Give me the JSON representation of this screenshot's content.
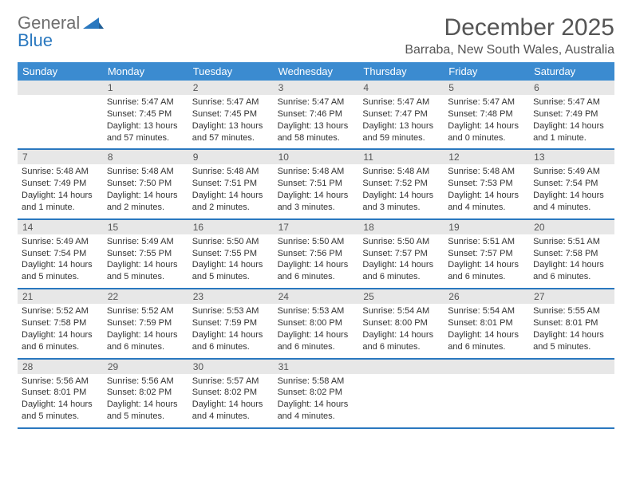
{
  "brand": {
    "part1": "General",
    "part2": "Blue"
  },
  "title": "December 2025",
  "location": "Barraba, New South Wales, Australia",
  "colors": {
    "header_bg": "#3b8bd0",
    "week_divider": "#2a78bf",
    "daynum_bg": "#e7e7e7",
    "text": "#333333",
    "muted": "#555555",
    "white": "#ffffff"
  },
  "days_of_week": [
    "Sunday",
    "Monday",
    "Tuesday",
    "Wednesday",
    "Thursday",
    "Friday",
    "Saturday"
  ],
  "weeks": [
    [
      null,
      {
        "n": "1",
        "sr": "Sunrise: 5:47 AM",
        "ss": "Sunset: 7:45 PM",
        "dl": "Daylight: 13 hours and 57 minutes."
      },
      {
        "n": "2",
        "sr": "Sunrise: 5:47 AM",
        "ss": "Sunset: 7:45 PM",
        "dl": "Daylight: 13 hours and 57 minutes."
      },
      {
        "n": "3",
        "sr": "Sunrise: 5:47 AM",
        "ss": "Sunset: 7:46 PM",
        "dl": "Daylight: 13 hours and 58 minutes."
      },
      {
        "n": "4",
        "sr": "Sunrise: 5:47 AM",
        "ss": "Sunset: 7:47 PM",
        "dl": "Daylight: 13 hours and 59 minutes."
      },
      {
        "n": "5",
        "sr": "Sunrise: 5:47 AM",
        "ss": "Sunset: 7:48 PM",
        "dl": "Daylight: 14 hours and 0 minutes."
      },
      {
        "n": "6",
        "sr": "Sunrise: 5:47 AM",
        "ss": "Sunset: 7:49 PM",
        "dl": "Daylight: 14 hours and 1 minute."
      }
    ],
    [
      {
        "n": "7",
        "sr": "Sunrise: 5:48 AM",
        "ss": "Sunset: 7:49 PM",
        "dl": "Daylight: 14 hours and 1 minute."
      },
      {
        "n": "8",
        "sr": "Sunrise: 5:48 AM",
        "ss": "Sunset: 7:50 PM",
        "dl": "Daylight: 14 hours and 2 minutes."
      },
      {
        "n": "9",
        "sr": "Sunrise: 5:48 AM",
        "ss": "Sunset: 7:51 PM",
        "dl": "Daylight: 14 hours and 2 minutes."
      },
      {
        "n": "10",
        "sr": "Sunrise: 5:48 AM",
        "ss": "Sunset: 7:51 PM",
        "dl": "Daylight: 14 hours and 3 minutes."
      },
      {
        "n": "11",
        "sr": "Sunrise: 5:48 AM",
        "ss": "Sunset: 7:52 PM",
        "dl": "Daylight: 14 hours and 3 minutes."
      },
      {
        "n": "12",
        "sr": "Sunrise: 5:48 AM",
        "ss": "Sunset: 7:53 PM",
        "dl": "Daylight: 14 hours and 4 minutes."
      },
      {
        "n": "13",
        "sr": "Sunrise: 5:49 AM",
        "ss": "Sunset: 7:54 PM",
        "dl": "Daylight: 14 hours and 4 minutes."
      }
    ],
    [
      {
        "n": "14",
        "sr": "Sunrise: 5:49 AM",
        "ss": "Sunset: 7:54 PM",
        "dl": "Daylight: 14 hours and 5 minutes."
      },
      {
        "n": "15",
        "sr": "Sunrise: 5:49 AM",
        "ss": "Sunset: 7:55 PM",
        "dl": "Daylight: 14 hours and 5 minutes."
      },
      {
        "n": "16",
        "sr": "Sunrise: 5:50 AM",
        "ss": "Sunset: 7:55 PM",
        "dl": "Daylight: 14 hours and 5 minutes."
      },
      {
        "n": "17",
        "sr": "Sunrise: 5:50 AM",
        "ss": "Sunset: 7:56 PM",
        "dl": "Daylight: 14 hours and 6 minutes."
      },
      {
        "n": "18",
        "sr": "Sunrise: 5:50 AM",
        "ss": "Sunset: 7:57 PM",
        "dl": "Daylight: 14 hours and 6 minutes."
      },
      {
        "n": "19",
        "sr": "Sunrise: 5:51 AM",
        "ss": "Sunset: 7:57 PM",
        "dl": "Daylight: 14 hours and 6 minutes."
      },
      {
        "n": "20",
        "sr": "Sunrise: 5:51 AM",
        "ss": "Sunset: 7:58 PM",
        "dl": "Daylight: 14 hours and 6 minutes."
      }
    ],
    [
      {
        "n": "21",
        "sr": "Sunrise: 5:52 AM",
        "ss": "Sunset: 7:58 PM",
        "dl": "Daylight: 14 hours and 6 minutes."
      },
      {
        "n": "22",
        "sr": "Sunrise: 5:52 AM",
        "ss": "Sunset: 7:59 PM",
        "dl": "Daylight: 14 hours and 6 minutes."
      },
      {
        "n": "23",
        "sr": "Sunrise: 5:53 AM",
        "ss": "Sunset: 7:59 PM",
        "dl": "Daylight: 14 hours and 6 minutes."
      },
      {
        "n": "24",
        "sr": "Sunrise: 5:53 AM",
        "ss": "Sunset: 8:00 PM",
        "dl": "Daylight: 14 hours and 6 minutes."
      },
      {
        "n": "25",
        "sr": "Sunrise: 5:54 AM",
        "ss": "Sunset: 8:00 PM",
        "dl": "Daylight: 14 hours and 6 minutes."
      },
      {
        "n": "26",
        "sr": "Sunrise: 5:54 AM",
        "ss": "Sunset: 8:01 PM",
        "dl": "Daylight: 14 hours and 6 minutes."
      },
      {
        "n": "27",
        "sr": "Sunrise: 5:55 AM",
        "ss": "Sunset: 8:01 PM",
        "dl": "Daylight: 14 hours and 5 minutes."
      }
    ],
    [
      {
        "n": "28",
        "sr": "Sunrise: 5:56 AM",
        "ss": "Sunset: 8:01 PM",
        "dl": "Daylight: 14 hours and 5 minutes."
      },
      {
        "n": "29",
        "sr": "Sunrise: 5:56 AM",
        "ss": "Sunset: 8:02 PM",
        "dl": "Daylight: 14 hours and 5 minutes."
      },
      {
        "n": "30",
        "sr": "Sunrise: 5:57 AM",
        "ss": "Sunset: 8:02 PM",
        "dl": "Daylight: 14 hours and 4 minutes."
      },
      {
        "n": "31",
        "sr": "Sunrise: 5:58 AM",
        "ss": "Sunset: 8:02 PM",
        "dl": "Daylight: 14 hours and 4 minutes."
      },
      null,
      null,
      null
    ]
  ]
}
